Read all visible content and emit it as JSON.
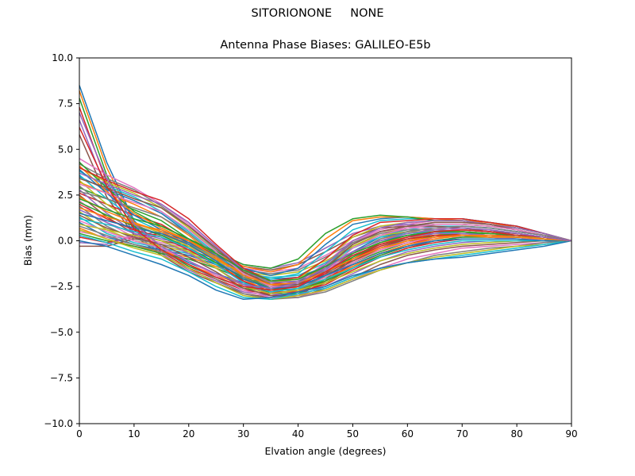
{
  "figure": {
    "suptitle": "SITORIONONE     NONE"
  },
  "chart_data": {
    "type": "line",
    "title": "Antenna Phase Biases: GALILEO-E5b",
    "xlabel": "Elvation angle (degrees)",
    "ylabel": "Bias (mm)",
    "xlim": [
      0,
      90
    ],
    "ylim": [
      -10,
      10
    ],
    "xticks": [
      0,
      10,
      20,
      30,
      40,
      50,
      60,
      70,
      80,
      90
    ],
    "yticks": [
      -10.0,
      -7.5,
      -5.0,
      -2.5,
      0.0,
      2.5,
      5.0,
      7.5,
      10.0
    ],
    "xtick_labels": [
      "0",
      "10",
      "20",
      "30",
      "40",
      "50",
      "60",
      "70",
      "80",
      "90"
    ],
    "ytick_labels": [
      "−10.0",
      "−7.5",
      "−5.0",
      "−2.5",
      "0.0",
      "2.5",
      "5.0",
      "7.5",
      "10.0"
    ],
    "grid": false,
    "x": [
      0,
      5,
      10,
      15,
      20,
      25,
      30,
      35,
      40,
      45,
      50,
      55,
      60,
      65,
      70,
      75,
      80,
      85,
      90
    ],
    "series": [
      {
        "values": [
          8.5,
          4.3,
          1.1,
          -0.4,
          -1.2,
          -1.8,
          -2.3,
          -2.6,
          -2.4,
          -1.8,
          -1.0,
          -0.4,
          0.1,
          0.4,
          0.5,
          0.4,
          0.3,
          0.2,
          0.0
        ]
      },
      {
        "values": [
          8.2,
          4.0,
          1.0,
          -0.4,
          -1.3,
          -1.9,
          -2.4,
          -2.7,
          -2.5,
          -1.9,
          -1.1,
          -0.5,
          0.0,
          0.3,
          0.5,
          0.4,
          0.3,
          0.2,
          0.0
        ]
      },
      {
        "values": [
          7.8,
          3.6,
          0.8,
          -0.5,
          -1.4,
          -2.0,
          -2.6,
          -2.8,
          -2.6,
          -2.0,
          -1.2,
          -0.6,
          -0.1,
          0.3,
          0.4,
          0.4,
          0.3,
          0.2,
          0.0
        ]
      },
      {
        "values": [
          7.3,
          3.2,
          0.6,
          -0.6,
          -1.5,
          -2.1,
          -2.7,
          -2.9,
          -2.7,
          -2.1,
          -1.3,
          -0.7,
          -0.2,
          0.2,
          0.4,
          0.3,
          0.3,
          0.2,
          0.0
        ]
      },
      {
        "values": [
          6.6,
          2.8,
          0.4,
          -0.7,
          -1.6,
          -2.2,
          -2.8,
          -3.0,
          -2.8,
          -2.2,
          -1.4,
          -0.8,
          -0.3,
          0.1,
          0.3,
          0.3,
          0.2,
          0.1,
          0.0
        ]
      },
      {
        "values": [
          5.8,
          2.4,
          0.3,
          -0.8,
          -1.7,
          -2.3,
          -2.9,
          -3.1,
          -2.9,
          -2.3,
          -1.5,
          -0.9,
          -0.4,
          0.0,
          0.2,
          0.2,
          0.2,
          0.1,
          0.0
        ]
      },
      {
        "values": [
          4.5,
          3.6,
          2.9,
          2.0,
          0.9,
          -0.4,
          -1.6,
          -2.4,
          -2.3,
          -1.2,
          0.0,
          0.6,
          0.9,
          1.1,
          1.1,
          0.9,
          0.7,
          0.4,
          0.0
        ]
      },
      {
        "values": [
          4.2,
          3.4,
          2.8,
          1.9,
          0.8,
          -0.5,
          -1.7,
          -2.5,
          -2.4,
          -1.3,
          -0.1,
          0.5,
          0.8,
          1.0,
          1.0,
          0.9,
          0.6,
          0.3,
          0.0
        ]
      },
      {
        "values": [
          4.0,
          3.2,
          2.6,
          1.8,
          0.7,
          -0.6,
          -1.8,
          -2.6,
          -2.5,
          -1.5,
          -0.3,
          0.4,
          0.7,
          0.9,
          0.9,
          0.8,
          0.6,
          0.3,
          0.0
        ]
      },
      {
        "values": [
          3.8,
          3.0,
          2.4,
          1.6,
          0.5,
          -0.7,
          -1.9,
          -2.7,
          -2.6,
          -1.6,
          -0.4,
          0.3,
          0.6,
          0.8,
          0.8,
          0.7,
          0.5,
          0.3,
          0.0
        ]
      },
      {
        "values": [
          3.5,
          2.8,
          2.2,
          1.5,
          0.4,
          -0.8,
          -2.0,
          -2.7,
          -2.7,
          -1.8,
          -0.6,
          0.2,
          0.5,
          0.7,
          0.8,
          0.7,
          0.5,
          0.3,
          0.0
        ]
      },
      {
        "values": [
          3.2,
          2.6,
          2.0,
          1.3,
          0.3,
          -0.9,
          -2.1,
          -2.8,
          -2.8,
          -1.9,
          -0.7,
          0.1,
          0.4,
          0.6,
          0.7,
          0.6,
          0.4,
          0.2,
          0.0
        ]
      },
      {
        "values": [
          2.9,
          2.3,
          1.7,
          1.1,
          0.1,
          -1.0,
          -2.2,
          -2.9,
          -2.9,
          -2.1,
          -0.9,
          -0.1,
          0.3,
          0.5,
          0.6,
          0.5,
          0.4,
          0.2,
          0.0
        ]
      },
      {
        "values": [
          2.6,
          2.0,
          1.4,
          0.9,
          0.0,
          -1.1,
          -2.3,
          -3.0,
          -3.0,
          -2.2,
          -1.0,
          -0.2,
          0.2,
          0.5,
          0.6,
          0.5,
          0.4,
          0.2,
          0.0
        ]
      },
      {
        "values": [
          2.8,
          1.5,
          0.5,
          0.1,
          -0.2,
          -0.7,
          -1.3,
          -1.5,
          -1.2,
          -0.4,
          0.4,
          0.8,
          0.9,
          0.8,
          0.7,
          0.6,
          0.4,
          0.2,
          0.0
        ]
      },
      {
        "values": [
          2.5,
          1.3,
          0.4,
          0.0,
          -0.3,
          -0.8,
          -1.4,
          -1.6,
          -1.3,
          -0.6,
          0.2,
          0.7,
          0.8,
          0.8,
          0.7,
          0.5,
          0.4,
          0.2,
          0.0
        ]
      },
      {
        "values": [
          2.2,
          1.0,
          0.2,
          -0.1,
          -0.4,
          -0.9,
          -1.5,
          -1.7,
          -1.5,
          -0.8,
          0.0,
          0.5,
          0.7,
          0.7,
          0.6,
          0.5,
          0.3,
          0.2,
          0.0
        ]
      },
      {
        "values": [
          1.9,
          0.8,
          0.1,
          -0.2,
          -0.5,
          -1.0,
          -1.6,
          -1.8,
          -1.6,
          -0.9,
          -0.1,
          0.4,
          0.6,
          0.6,
          0.5,
          0.4,
          0.3,
          0.1,
          0.0
        ]
      },
      {
        "values": [
          1.6,
          0.6,
          0.0,
          -0.3,
          -0.6,
          -1.1,
          -1.7,
          -1.9,
          -1.7,
          -1.1,
          -0.3,
          0.3,
          0.5,
          0.5,
          0.5,
          0.4,
          0.3,
          0.1,
          0.0
        ]
      },
      {
        "values": [
          1.3,
          0.4,
          -0.1,
          -0.4,
          -0.7,
          -1.2,
          -1.8,
          -2.0,
          -1.9,
          -1.2,
          -0.4,
          0.2,
          0.4,
          0.5,
          0.4,
          0.3,
          0.2,
          0.1,
          0.0
        ]
      },
      {
        "values": [
          1.0,
          0.2,
          -0.2,
          -0.5,
          -0.8,
          -1.3,
          -1.9,
          -2.1,
          -2.0,
          -1.4,
          -0.6,
          0.0,
          0.3,
          0.4,
          0.4,
          0.3,
          0.2,
          0.1,
          0.0
        ]
      },
      {
        "values": [
          0.7,
          0.1,
          -0.3,
          -0.6,
          -0.9,
          -1.4,
          -2.0,
          -2.2,
          -2.1,
          -1.5,
          -0.7,
          -0.1,
          0.2,
          0.3,
          0.3,
          0.3,
          0.2,
          0.1,
          0.0
        ]
      },
      {
        "values": [
          0.4,
          0.0,
          -0.3,
          -0.7,
          -1.0,
          -1.5,
          -2.1,
          -2.3,
          -2.2,
          -1.7,
          -0.9,
          -0.2,
          0.1,
          0.3,
          0.3,
          0.2,
          0.2,
          0.1,
          0.0
        ]
      },
      {
        "values": [
          0.2,
          -0.1,
          0.2,
          0.4,
          0.0,
          -0.8,
          -1.6,
          -2.3,
          -2.4,
          -1.8,
          -1.0,
          -0.3,
          0.1,
          0.3,
          0.3,
          0.2,
          0.2,
          0.1,
          0.0
        ]
      },
      {
        "values": [
          -0.1,
          -0.2,
          0.3,
          0.5,
          0.1,
          -0.7,
          -1.5,
          -2.2,
          -2.3,
          -1.6,
          -0.8,
          -0.2,
          0.2,
          0.4,
          0.4,
          0.3,
          0.2,
          0.1,
          0.0
        ]
      },
      {
        "values": [
          -0.3,
          -0.3,
          0.1,
          0.3,
          -0.1,
          -0.9,
          -1.7,
          -2.4,
          -2.5,
          -1.9,
          -1.1,
          -0.4,
          0.0,
          0.2,
          0.3,
          0.2,
          0.1,
          0.1,
          0.0
        ]
      },
      {
        "values": [
          0.5,
          0.2,
          0.2,
          0.3,
          -0.2,
          -1.1,
          -2.0,
          -2.6,
          -2.6,
          -2.0,
          -1.2,
          -0.5,
          -0.1,
          0.2,
          0.2,
          0.2,
          0.1,
          0.1,
          0.0
        ]
      },
      {
        "values": [
          3.0,
          1.8,
          0.9,
          0.3,
          -0.4,
          -1.2,
          -2.0,
          -2.5,
          -2.4,
          -1.4,
          -0.2,
          0.5,
          0.8,
          0.9,
          0.9,
          0.8,
          0.6,
          0.3,
          0.0
        ]
      },
      {
        "values": [
          3.3,
          2.0,
          1.0,
          0.4,
          -0.3,
          -1.0,
          -1.8,
          -2.3,
          -2.1,
          -1.0,
          0.2,
          0.8,
          1.0,
          1.1,
          1.1,
          1.0,
          0.7,
          0.4,
          0.0
        ]
      },
      {
        "values": [
          3.6,
          2.3,
          1.2,
          0.5,
          -0.2,
          -0.9,
          -1.6,
          -2.1,
          -1.8,
          -0.6,
          0.6,
          1.1,
          1.2,
          1.2,
          1.2,
          1.0,
          0.8,
          0.4,
          0.0
        ]
      },
      {
        "values": [
          3.9,
          2.6,
          1.4,
          0.6,
          -0.1,
          -0.8,
          -1.5,
          -1.9,
          -1.5,
          -0.2,
          0.9,
          1.2,
          1.3,
          1.2,
          1.2,
          1.0,
          0.8,
          0.4,
          0.0
        ]
      },
      {
        "values": [
          4.1,
          2.7,
          1.5,
          0.7,
          0.0,
          -0.7,
          -1.4,
          -1.7,
          -1.3,
          0.1,
          1.1,
          1.3,
          1.3,
          1.2,
          1.1,
          1.0,
          0.7,
          0.4,
          0.0
        ]
      },
      {
        "values": [
          4.3,
          2.9,
          1.6,
          0.8,
          0.1,
          -0.6,
          -1.3,
          -1.5,
          -1.0,
          0.4,
          1.2,
          1.4,
          1.3,
          1.1,
          1.1,
          0.9,
          0.7,
          0.4,
          0.0
        ]
      },
      {
        "values": [
          2.0,
          1.2,
          0.6,
          0.2,
          -0.5,
          -1.3,
          -2.2,
          -2.8,
          -2.8,
          -2.4,
          -1.6,
          -0.9,
          -0.4,
          -0.1,
          0.1,
          0.1,
          0.1,
          0.0,
          0.0
        ]
      },
      {
        "values": [
          1.7,
          1.0,
          0.4,
          0.0,
          -0.7,
          -1.5,
          -2.4,
          -2.9,
          -3.0,
          -2.5,
          -1.8,
          -1.1,
          -0.6,
          -0.3,
          -0.1,
          0.0,
          0.0,
          0.0,
          0.0
        ]
      },
      {
        "values": [
          1.4,
          0.7,
          0.2,
          -0.2,
          -0.9,
          -1.7,
          -2.6,
          -3.0,
          -3.1,
          -2.6,
          -2.0,
          -1.3,
          -0.8,
          -0.5,
          -0.3,
          -0.2,
          -0.1,
          0.0,
          0.0
        ]
      },
      {
        "values": [
          1.1,
          0.5,
          0.0,
          -0.4,
          -1.1,
          -1.9,
          -2.7,
          -3.1,
          -3.1,
          -2.7,
          -2.1,
          -1.5,
          -1.0,
          -0.7,
          -0.4,
          -0.3,
          -0.2,
          -0.1,
          0.0
        ]
      },
      {
        "values": [
          0.8,
          0.3,
          -0.2,
          -0.6,
          -1.3,
          -2.1,
          -2.9,
          -3.2,
          -3.1,
          -2.8,
          -2.2,
          -1.6,
          -1.2,
          -0.8,
          -0.6,
          -0.4,
          -0.3,
          -0.1,
          0.0
        ]
      },
      {
        "values": [
          0.6,
          0.1,
          -0.4,
          -0.8,
          -1.5,
          -2.3,
          -3.0,
          -3.2,
          -3.0,
          -2.7,
          -2.1,
          -1.6,
          -1.2,
          -0.9,
          -0.7,
          -0.5,
          -0.3,
          -0.2,
          0.0
        ]
      },
      {
        "values": [
          0.3,
          -0.1,
          -0.6,
          -1.0,
          -1.7,
          -2.5,
          -3.1,
          -3.2,
          -2.9,
          -2.6,
          -2.0,
          -1.5,
          -1.2,
          -1.0,
          -0.8,
          -0.6,
          -0.4,
          -0.2,
          0.0
        ]
      },
      {
        "values": [
          0.0,
          -0.3,
          -0.8,
          -1.3,
          -1.9,
          -2.7,
          -3.2,
          -3.1,
          -2.8,
          -2.5,
          -1.9,
          -1.5,
          -1.2,
          -1.0,
          -0.9,
          -0.7,
          -0.5,
          -0.3,
          0.0
        ]
      },
      {
        "values": [
          2.4,
          1.6,
          1.0,
          0.5,
          -0.2,
          -1.0,
          -1.8,
          -2.4,
          -2.6,
          -2.1,
          -1.4,
          -0.7,
          -0.2,
          0.1,
          0.3,
          0.3,
          0.2,
          0.1,
          0.0
        ]
      },
      {
        "values": [
          2.1,
          1.4,
          0.8,
          0.3,
          -0.4,
          -1.2,
          -2.0,
          -2.6,
          -2.7,
          -2.2,
          -1.5,
          -0.8,
          -0.3,
          0.0,
          0.2,
          0.2,
          0.2,
          0.1,
          0.0
        ]
      },
      {
        "values": [
          4.0,
          3.3,
          2.7,
          2.2,
          1.2,
          -0.2,
          -1.5,
          -2.2,
          -2.0,
          -1.0,
          0.3,
          1.0,
          1.1,
          1.2,
          1.2,
          1.0,
          0.8,
          0.4,
          0.0
        ]
      },
      {
        "values": [
          3.7,
          3.1,
          2.5,
          2.0,
          1.0,
          -0.3,
          -1.6,
          -2.3,
          -2.2,
          -1.3,
          0.0,
          0.7,
          1.0,
          1.1,
          1.1,
          0.9,
          0.7,
          0.4,
          0.0
        ]
      },
      {
        "values": [
          3.4,
          2.9,
          2.3,
          1.8,
          0.8,
          -0.4,
          -1.7,
          -2.4,
          -2.4,
          -1.5,
          -0.2,
          0.5,
          0.8,
          1.0,
          1.0,
          0.9,
          0.6,
          0.3,
          0.0
        ]
      },
      {
        "values": [
          3.1,
          2.6,
          2.1,
          1.6,
          0.6,
          -0.6,
          -1.8,
          -2.5,
          -2.5,
          -1.7,
          -0.4,
          0.3,
          0.7,
          0.9,
          0.9,
          0.8,
          0.6,
          0.3,
          0.0
        ]
      },
      {
        "values": [
          2.7,
          2.3,
          1.8,
          1.3,
          0.4,
          -0.8,
          -2.0,
          -2.7,
          -2.7,
          -1.9,
          -0.7,
          0.1,
          0.5,
          0.7,
          0.8,
          0.7,
          0.5,
          0.3,
          0.0
        ]
      },
      {
        "values": [
          0.9,
          0.6,
          0.3,
          0.0,
          -0.6,
          -1.5,
          -2.5,
          -2.9,
          -2.7,
          -2.3,
          -1.7,
          -1.1,
          -0.7,
          -0.4,
          -0.2,
          -0.1,
          0.0,
          0.0,
          0.0
        ]
      },
      {
        "values": [
          1.2,
          0.9,
          0.5,
          0.2,
          -0.4,
          -1.3,
          -2.3,
          -2.8,
          -2.6,
          -2.1,
          -1.5,
          -0.9,
          -0.5,
          -0.2,
          0.0,
          0.0,
          0.0,
          0.0,
          0.0
        ]
      },
      {
        "values": [
          1.5,
          1.1,
          0.7,
          0.4,
          -0.2,
          -1.1,
          -2.1,
          -2.6,
          -2.5,
          -1.9,
          -1.3,
          -0.7,
          -0.3,
          0.0,
          0.1,
          0.1,
          0.1,
          0.0,
          0.0
        ]
      },
      {
        "values": [
          1.8,
          1.3,
          0.9,
          0.6,
          0.0,
          -0.9,
          -1.9,
          -2.4,
          -2.3,
          -1.7,
          -1.0,
          -0.4,
          0.0,
          0.2,
          0.3,
          0.2,
          0.2,
          0.1,
          0.0
        ]
      },
      {
        "values": [
          2.3,
          1.7,
          1.2,
          0.8,
          0.1,
          -0.7,
          -1.6,
          -2.2,
          -2.1,
          -1.4,
          -0.7,
          -0.1,
          0.3,
          0.5,
          0.5,
          0.4,
          0.3,
          0.2,
          0.0
        ]
      },
      {
        "values": [
          6.2,
          3.0,
          0.7,
          -0.5,
          -1.3,
          -2.0,
          -2.5,
          -2.7,
          -2.5,
          -1.7,
          -0.8,
          -0.2,
          0.2,
          0.5,
          0.6,
          0.5,
          0.3,
          0.2,
          0.0
        ]
      },
      {
        "values": [
          7.0,
          3.4,
          0.9,
          -0.3,
          -1.1,
          -1.8,
          -2.4,
          -2.6,
          -2.3,
          -1.5,
          -0.6,
          0.0,
          0.4,
          0.6,
          0.7,
          0.6,
          0.4,
          0.2,
          0.0
        ]
      }
    ]
  }
}
